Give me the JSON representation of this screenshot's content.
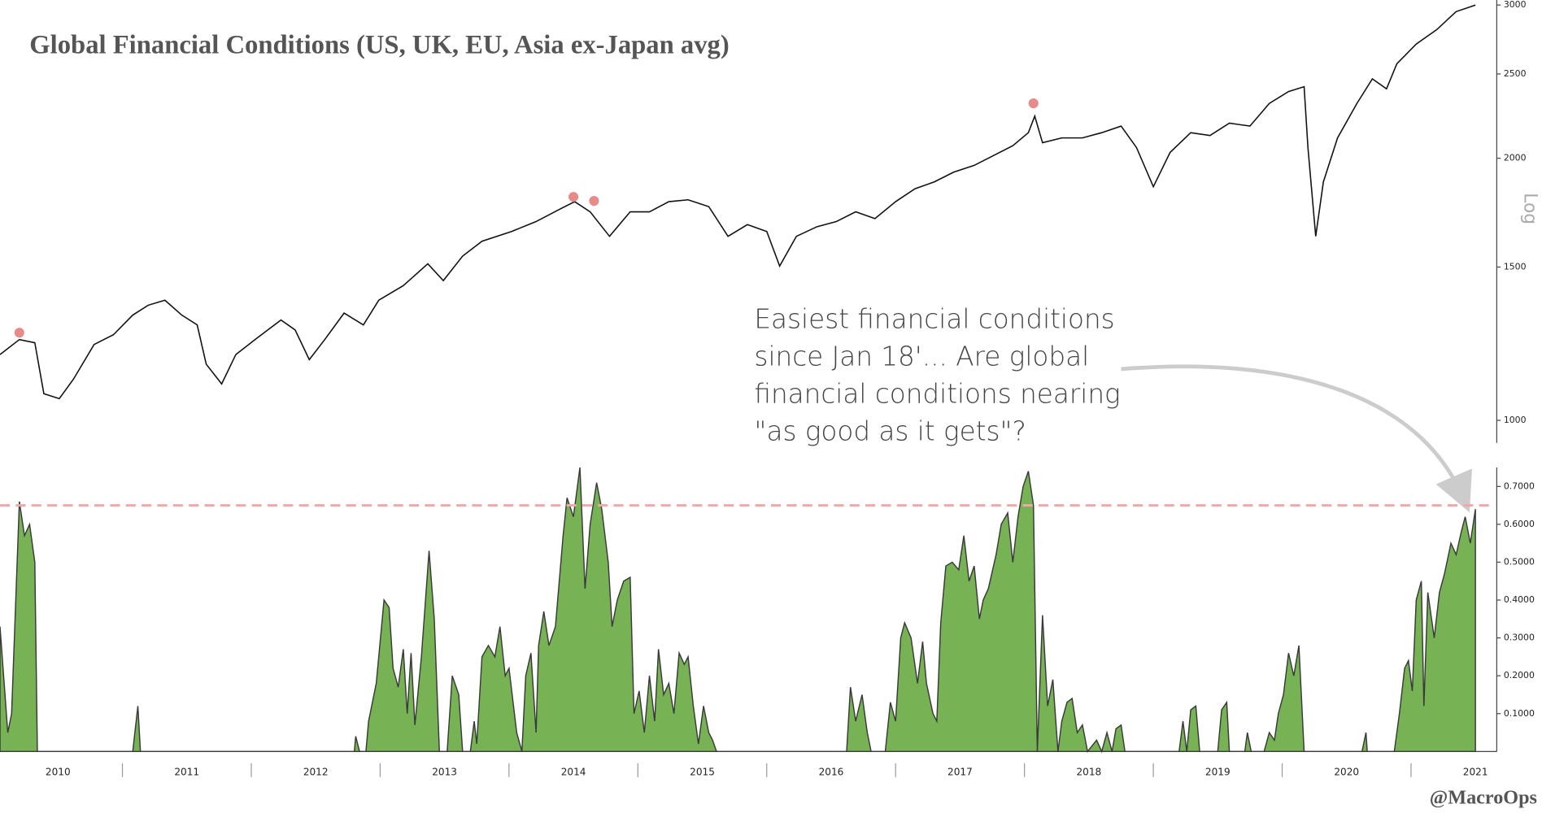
{
  "chart_data": [
    {
      "type": "line",
      "title": "Global Financial Conditions (US, UK, EU, Asia ex-Japan avg)",
      "log_label": "Log",
      "log_scale": true,
      "x": [
        2010.05,
        2010.2,
        2010.32,
        2010.39,
        2010.51,
        2010.62,
        2010.78,
        2010.93,
        2011.08,
        2011.2,
        2011.33,
        2011.46,
        2011.58,
        2011.65,
        2011.77,
        2011.88,
        2012.03,
        2012.23,
        2012.34,
        2012.45,
        2012.57,
        2012.72,
        2012.87,
        2012.99,
        2013.18,
        2013.37,
        2013.49,
        2013.64,
        2013.79,
        2014.02,
        2014.21,
        2014.4,
        2014.51,
        2014.63,
        2014.78,
        2014.94,
        2015.09,
        2015.24,
        2015.39,
        2015.55,
        2015.7,
        2015.85,
        2016.0,
        2016.1,
        2016.23,
        2016.39,
        2016.54,
        2016.69,
        2016.84,
        2017.0,
        2017.15,
        2017.3,
        2017.45,
        2017.61,
        2017.76,
        2017.91,
        2018.03,
        2018.08,
        2018.14,
        2018.29,
        2018.45,
        2018.6,
        2018.75,
        2018.87,
        2019.0,
        2019.13,
        2019.29,
        2019.44,
        2019.59,
        2019.75,
        2019.9,
        2020.05,
        2020.17,
        2020.2,
        2020.26,
        2020.32,
        2020.43,
        2020.58,
        2020.7,
        2020.81,
        2020.89,
        2021.04,
        2021.2,
        2021.35,
        2021.5
      ],
      "series": [
        {
          "color": "#111111",
          "values": [
            1190,
            1238,
            1228,
            1073,
            1059,
            1115,
            1222,
            1254,
            1321,
            1356,
            1374,
            1321,
            1287,
            1160,
            1101,
            1190,
            1238,
            1304,
            1270,
            1174,
            1238,
            1328,
            1287,
            1374,
            1428,
            1513,
            1447,
            1544,
            1606,
            1648,
            1692,
            1750,
            1783,
            1736,
            1627,
            1736,
            1736,
            1783,
            1792,
            1760,
            1627,
            1678,
            1648,
            1504,
            1627,
            1669,
            1692,
            1736,
            1705,
            1783,
            1845,
            1879,
            1928,
            1963,
            2015,
            2068,
            2140,
            2236,
            2084,
            2111,
            2111,
            2140,
            2178,
            2057,
            1855,
            2031,
            2140,
            2124,
            2195,
            2178,
            2312,
            2386,
            2417,
            2057,
            1627,
            1879,
            2111,
            2312,
            2468,
            2403,
            2568,
            2705,
            2811,
            2948,
            2999
          ]
        }
      ],
      "highlights": {
        "color": "#e88a8a",
        "x": [
          2010.2,
          2014.5,
          2014.66,
          2018.07
        ],
        "values": [
          1261,
          1806,
          1787,
          2313
        ]
      },
      "xlim": [
        2010.05,
        2021.65
      ],
      "ylim": [
        942,
        3040
      ],
      "yticks": [
        1000,
        1500,
        2000,
        2500,
        3000
      ]
    },
    {
      "type": "area",
      "color": "#77b255",
      "annotation": [
        "Easiest financial conditions",
        "since Jan 18'... Are global",
        "financial conditions nearing",
        "\"as good as it gets\"?"
      ],
      "source": "@MacroOps",
      "x": [
        2010.05,
        2010.11,
        2010.14,
        2010.2,
        2010.24,
        2010.28,
        2010.32,
        2010.34,
        2011.08,
        2011.12,
        2011.14,
        2012.8,
        2012.81,
        2012.84,
        2012.89,
        2012.91,
        2012.97,
        2013.03,
        2013.07,
        2013.1,
        2013.14,
        2013.18,
        2013.21,
        2013.24,
        2013.27,
        2013.32,
        2013.38,
        2013.42,
        2013.46,
        2013.52,
        2013.56,
        2013.61,
        2013.64,
        2013.7,
        2013.73,
        2013.75,
        2013.79,
        2013.84,
        2013.89,
        2013.93,
        2013.97,
        2014.0,
        2014.06,
        2014.1,
        2014.13,
        2014.17,
        2014.21,
        2014.23,
        2014.27,
        2014.31,
        2014.36,
        2014.42,
        2014.45,
        2014.5,
        2014.55,
        2014.59,
        2014.63,
        2014.68,
        2014.72,
        2014.77,
        2014.8,
        2014.84,
        2014.89,
        2014.94,
        2014.97,
        2015.01,
        2015.05,
        2015.09,
        2015.13,
        2015.16,
        2015.2,
        2015.24,
        2015.28,
        2015.32,
        2015.36,
        2015.39,
        2015.43,
        2015.47,
        2015.51,
        2015.55,
        2015.58,
        2015.61,
        2016.62,
        2016.65,
        2016.69,
        2016.74,
        2016.78,
        2016.81,
        2016.92,
        2016.96,
        2017.0,
        2017.04,
        2017.07,
        2017.12,
        2017.17,
        2017.21,
        2017.24,
        2017.29,
        2017.32,
        2017.35,
        2017.39,
        2017.44,
        2017.49,
        2017.53,
        2017.57,
        2017.61,
        2017.65,
        2017.68,
        2017.72,
        2017.78,
        2017.82,
        2017.87,
        2017.91,
        2017.95,
        2017.99,
        2018.03,
        2018.07,
        2018.1,
        2018.14,
        2018.18,
        2018.22,
        2018.26,
        2018.29,
        2018.33,
        2018.37,
        2018.41,
        2018.45,
        2018.49,
        2018.56,
        2018.6,
        2018.64,
        2018.68,
        2018.71,
        2018.75,
        2018.78,
        2019.2,
        2019.23,
        2019.26,
        2019.29,
        2019.33,
        2019.36,
        2019.5,
        2019.53,
        2019.57,
        2019.59,
        2019.71,
        2019.73,
        2019.76,
        2019.86,
        2019.9,
        2019.94,
        2019.97,
        2020.01,
        2020.05,
        2020.09,
        2020.13,
        2020.17,
        2020.62,
        2020.65,
        2020.66,
        2020.87,
        2020.91,
        2020.95,
        2020.98,
        2021.01,
        2021.04,
        2021.08,
        2021.1,
        2021.13,
        2021.18,
        2021.22,
        2021.26,
        2021.31,
        2021.35,
        2021.39,
        2021.42,
        2021.46,
        2021.5
      ],
      "values": [
        0.33,
        0.05,
        0.1,
        0.66,
        0.57,
        0.6,
        0.5,
        0,
        0,
        0.12,
        0,
        0,
        0.04,
        0,
        0,
        0.08,
        0.18,
        0.4,
        0.38,
        0.22,
        0.17,
        0.27,
        0.1,
        0.26,
        0.07,
        0.25,
        0.53,
        0.35,
        0,
        0,
        0.2,
        0.15,
        0,
        0,
        0.08,
        0.02,
        0.25,
        0.28,
        0.25,
        0.33,
        0.2,
        0.22,
        0.05,
        0,
        0.2,
        0.26,
        0.05,
        0.28,
        0.37,
        0.28,
        0.33,
        0.57,
        0.67,
        0.62,
        0.75,
        0.43,
        0.6,
        0.71,
        0.64,
        0.5,
        0.33,
        0.4,
        0.45,
        0.46,
        0.1,
        0.16,
        0.05,
        0.2,
        0.08,
        0.27,
        0.15,
        0.18,
        0.1,
        0.26,
        0.23,
        0.25,
        0.12,
        0.02,
        0.12,
        0.05,
        0.03,
        0,
        0,
        0.17,
        0.08,
        0.15,
        0.05,
        0,
        0,
        0.13,
        0.08,
        0.3,
        0.34,
        0.3,
        0.18,
        0.29,
        0.18,
        0.1,
        0.08,
        0.34,
        0.49,
        0.5,
        0.48,
        0.57,
        0.45,
        0.49,
        0.35,
        0.4,
        0.43,
        0.52,
        0.6,
        0.63,
        0.5,
        0.62,
        0.7,
        0.74,
        0.65,
        0,
        0.36,
        0.12,
        0.19,
        0,
        0.08,
        0.13,
        0.14,
        0.05,
        0.07,
        0,
        0.03,
        0,
        0.05,
        0,
        0.06,
        0.07,
        0,
        0,
        0.08,
        0,
        0.11,
        0.12,
        0,
        0,
        0.11,
        0.13,
        0,
        0,
        0.05,
        0,
        0,
        0.05,
        0.03,
        0.1,
        0.15,
        0.26,
        0.2,
        0.28,
        0,
        0,
        0.05,
        0,
        0,
        0.1,
        0.22,
        0.24,
        0.16,
        0.4,
        0.45,
        0.12,
        0.42,
        0.3,
        0.42,
        0.47,
        0.55,
        0.52,
        0.58,
        0.62,
        0.55,
        0.64
      ],
      "threshold": 0.65,
      "threshold_color": "#f0a8a8",
      "xlim": [
        2010.05,
        2021.65
      ],
      "ylim": [
        0,
        0.75
      ],
      "yticks": [
        {
          "value": 0.1,
          "label": "0.1000"
        },
        {
          "value": 0.2,
          "label": "0.2000"
        },
        {
          "value": 0.3,
          "label": "0.3000"
        },
        {
          "value": 0.4,
          "label": "0.4000"
        },
        {
          "value": 0.5,
          "label": "0.5000"
        },
        {
          "value": 0.6,
          "label": "0.6000"
        },
        {
          "value": 0.7,
          "label": "0.7000"
        }
      ],
      "xticks": [
        {
          "value": 2010.5,
          "label": "2010"
        },
        {
          "value": 2011.5,
          "label": "2011"
        },
        {
          "value": 2012.5,
          "label": "2012"
        },
        {
          "value": 2013.5,
          "label": "2013"
        },
        {
          "value": 2014.5,
          "label": "2014"
        },
        {
          "value": 2015.5,
          "label": "2015"
        },
        {
          "value": 2016.5,
          "label": "2016"
        },
        {
          "value": 2017.5,
          "label": "2017"
        },
        {
          "value": 2018.5,
          "label": "2018"
        },
        {
          "value": 2019.5,
          "label": "2019"
        },
        {
          "value": 2020.5,
          "label": "2020"
        },
        {
          "value": 2021.5,
          "label": "2021"
        }
      ]
    }
  ]
}
